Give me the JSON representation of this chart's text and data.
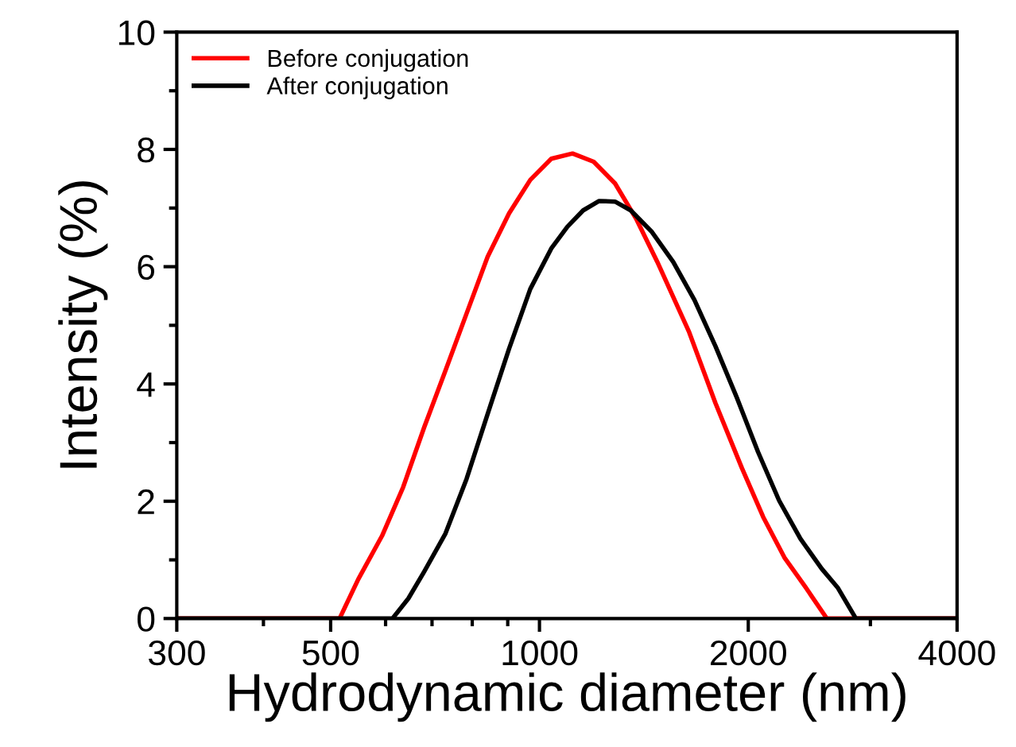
{
  "chart_data": {
    "type": "line",
    "xlabel": "Hydrodynamic diameter (nm)",
    "ylabel": "Intensity (%)",
    "log": "x",
    "xlim": [
      300,
      4000
    ],
    "xticks": [
      300,
      500,
      1000,
      2000,
      4000
    ],
    "ylim": [
      0,
      10
    ],
    "yticks": [
      0,
      2,
      4,
      6,
      8,
      10
    ],
    "grid": false,
    "legend": "top left",
    "marker": "none",
    "line_style": "solid",
    "series": [
      {
        "name": "Before conjugation",
        "color": "#ff0000",
        "x": [
          300,
          515,
          548,
          593,
          636,
          682,
          732,
          785,
          842,
          904,
          970,
          1040,
          1116,
          1197,
          1285,
          1378,
          1479,
          1644,
          1794,
          1959,
          2102,
          2255,
          2420,
          2596,
          4000
        ],
        "values": [
          0,
          0,
          0.67,
          1.41,
          2.24,
          3.26,
          4.23,
          5.2,
          6.17,
          6.91,
          7.48,
          7.84,
          7.93,
          7.79,
          7.42,
          6.82,
          6.08,
          4.88,
          3.67,
          2.56,
          1.73,
          1.04,
          0.53,
          0,
          0
        ]
      },
      {
        "name": "After conjugation",
        "color": "#000000",
        "x": [
          300,
          614,
          647,
          682,
          732,
          785,
          842,
          904,
          970,
          1040,
          1097,
          1156,
          1219,
          1285,
          1354,
          1453,
          1559,
          1673,
          1794,
          1925,
          2066,
          2216,
          2378,
          2552,
          2690,
          2859,
          4000
        ],
        "values": [
          0,
          0,
          0.34,
          0.8,
          1.45,
          2.38,
          3.49,
          4.6,
          5.62,
          6.31,
          6.68,
          6.96,
          7.12,
          7.11,
          6.96,
          6.59,
          6.08,
          5.43,
          4.64,
          3.77,
          2.84,
          2.01,
          1.36,
          0.85,
          0.53,
          0,
          0
        ]
      }
    ]
  }
}
